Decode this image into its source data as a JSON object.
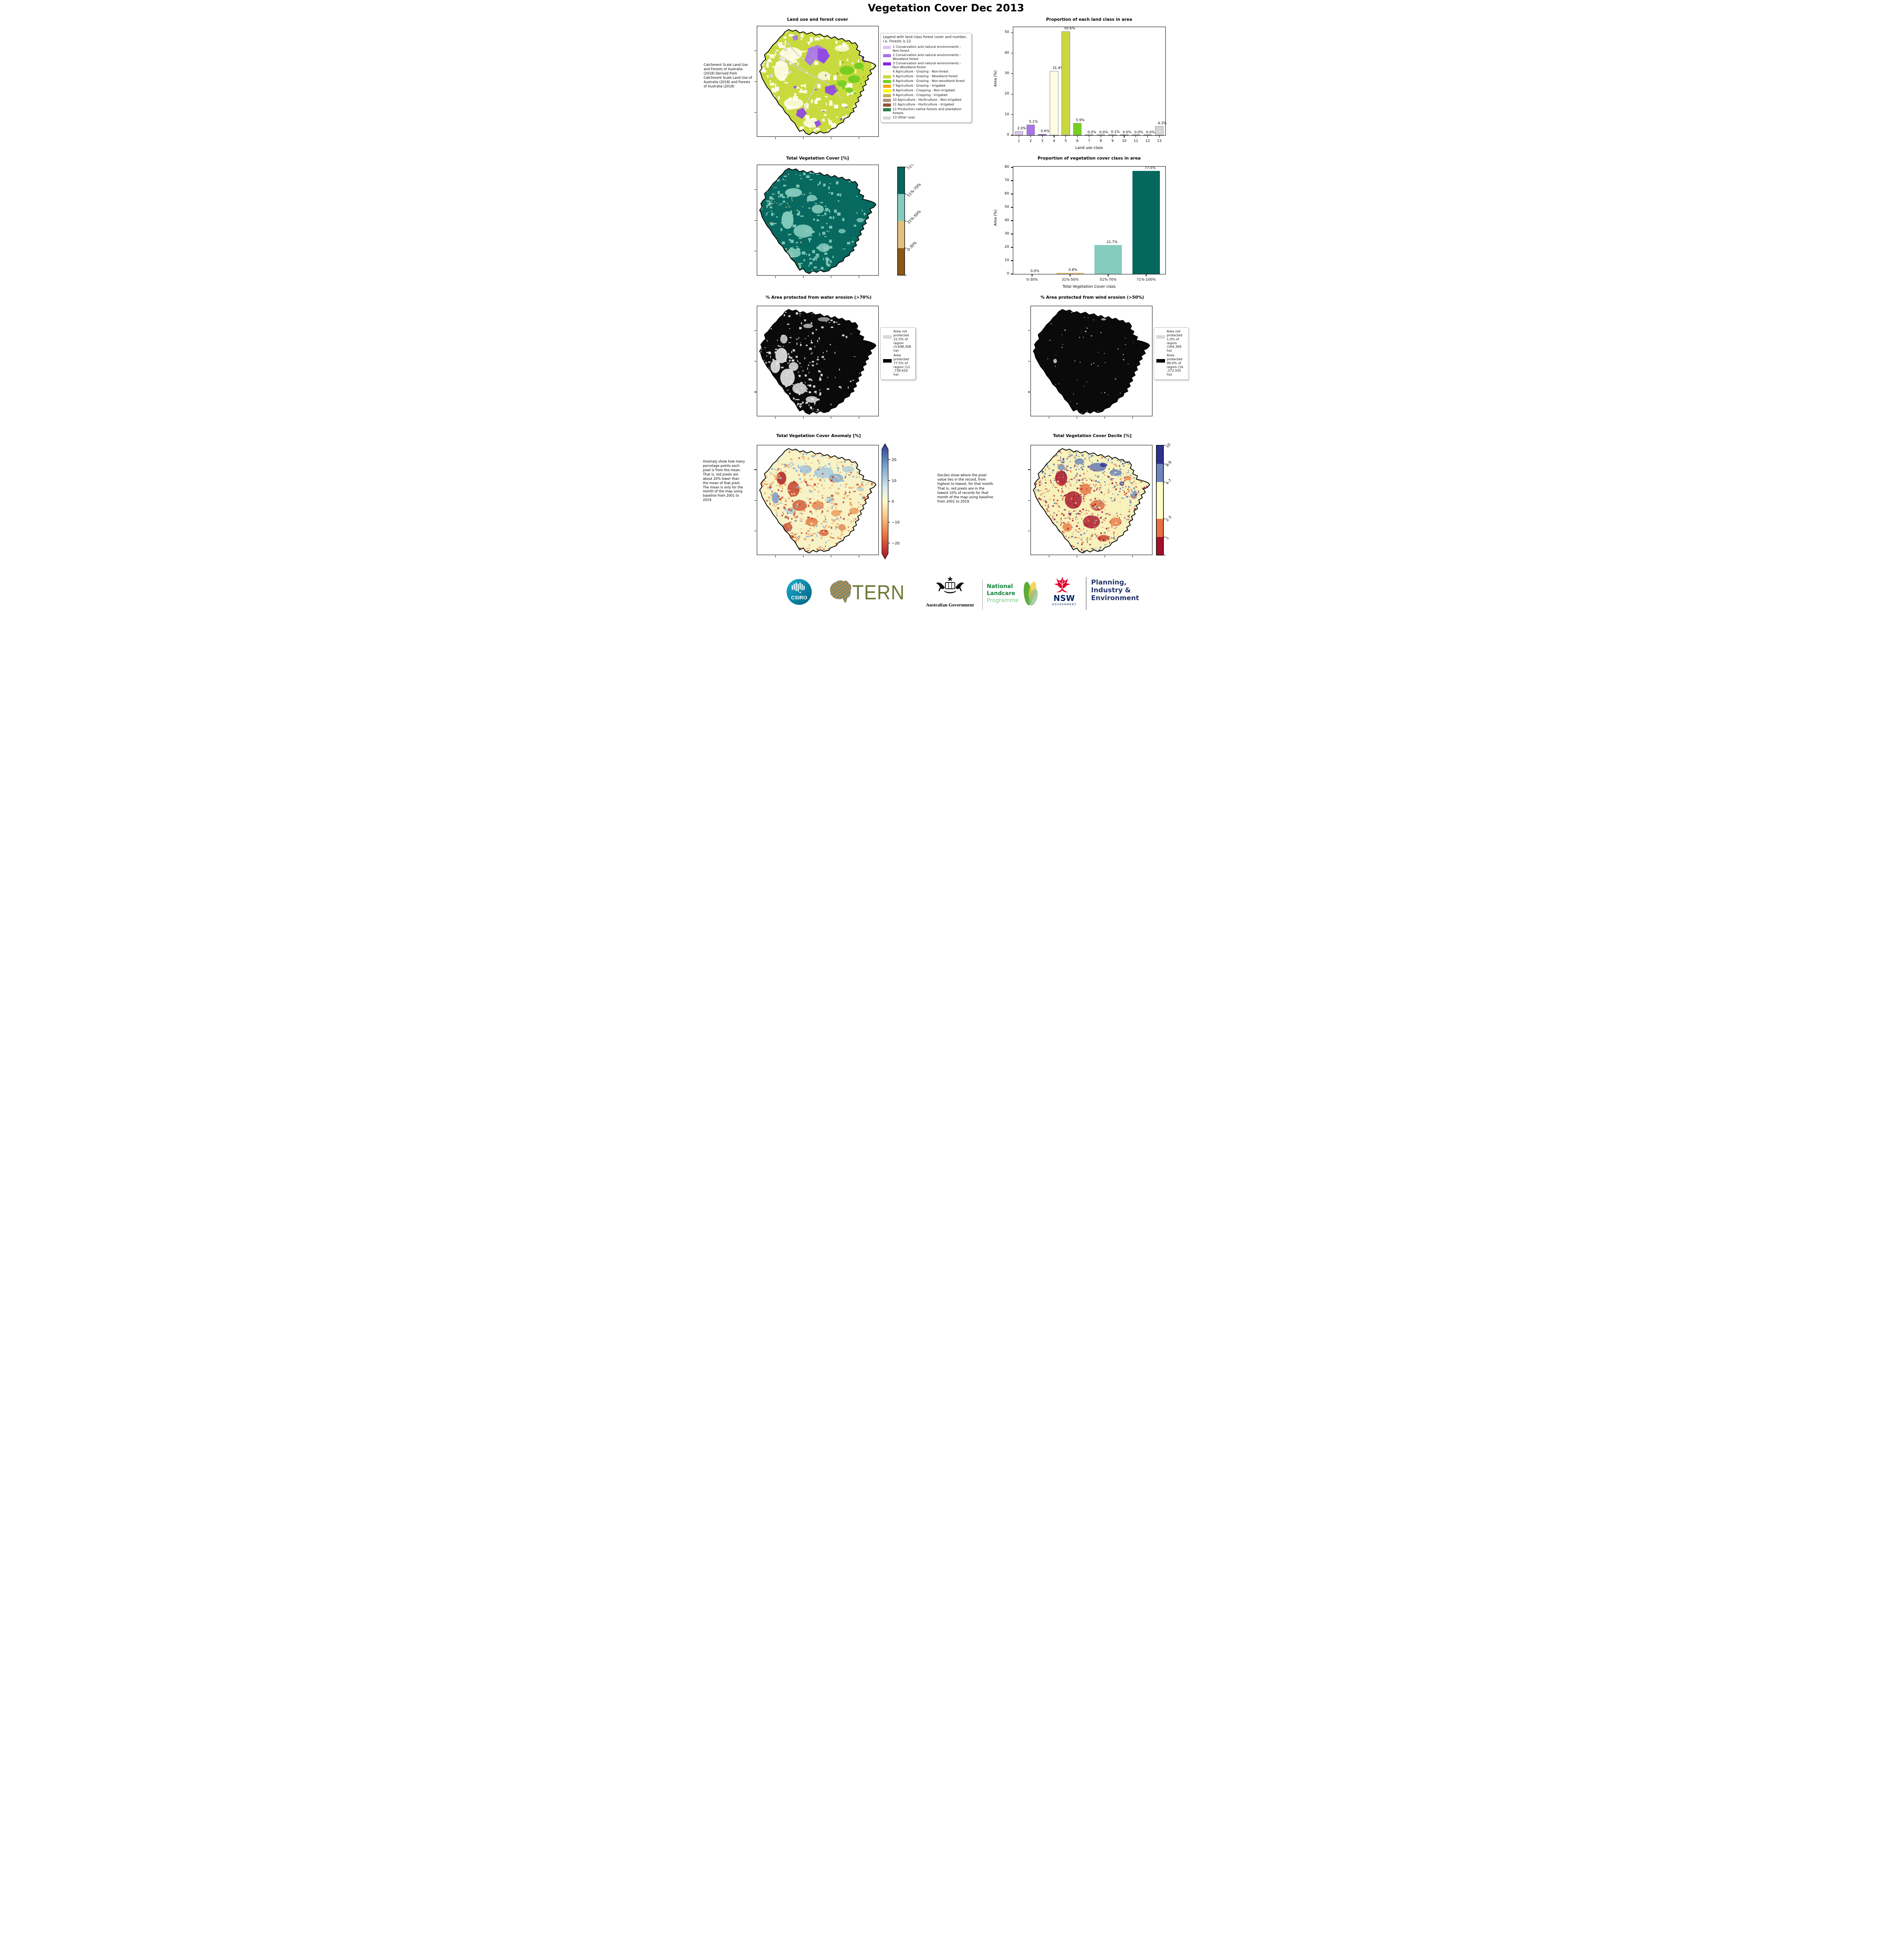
{
  "page_title": "Vegetation Cover Dec 2013",
  "land_use": {
    "title": "Land use and forest cover",
    "caption": " Catchment Scale Land Use and Forests of Australia (2018) Derived from Catchment Scale Land Use of Australia (2018) and Forests of Australia (2018)",
    "legend_title": "Legend with land class forest cover and number, i.e. Forests is 12",
    "classes": [
      {
        "label": "1 Conservation and natural environments - Non-forest",
        "color": "#ddc4f4"
      },
      {
        "label": "2 Conservation and natural environments - Woodland forest",
        "color": "#ab72ea"
      },
      {
        "label": "3 Conservation and natural environments - Non-Woodland forest",
        "color": "#8729e0"
      },
      {
        "label": "4 Agriculture - Grazing - Non-forest",
        "color": "#fffde5"
      },
      {
        "label": "5 Agriculture - Grazing - Woodland forest",
        "color": "#c9d840"
      },
      {
        "label": "6 Agriculture - Grazing - Non-woodland forest",
        "color": "#77d021"
      },
      {
        "label": "7 Agriculture - Grazing - Irrigated",
        "color": "#ffa510"
      },
      {
        "label": "8 Agriculture - Cropping - Non-irrigated",
        "color": "#fcfc00"
      },
      {
        "label": "9 Agriculture - Cropping - Irrigated",
        "color": "#c3b05c"
      },
      {
        "label": "10 Agriculture - Horticulture - Non-irrigated",
        "color": "#b08d7e"
      },
      {
        "label": "11 Agriculture - Horticulture - Irrigated",
        "color": "#95542f"
      },
      {
        "label": "12 Production native forests and plantation forests",
        "color": "#2c7e4c"
      },
      {
        "label": "13 Other uses",
        "color": "#d8d8d8"
      }
    ]
  },
  "veg_cover": {
    "title": "Total Vegetation Cover [%]",
    "colorbar": [
      {
        "label": "71%-100%",
        "color": "#06675e"
      },
      {
        "label": "51%-70%",
        "color": "#85ccbf"
      },
      {
        "label": "31%-50%",
        "color": "#e2c07e"
      },
      {
        "label": "0-30%",
        "color": "#8a5a15"
      }
    ]
  },
  "water_erosion": {
    "title": "% Area protected from water erosion (>70%)",
    "legend": [
      {
        "label": "Area not protected 22.5% of region (3,698,308 ha)",
        "color": "#d9d9d9"
      },
      {
        "label": "Area protected 77.5% of region (12 ,738,616 ha)",
        "color": "#000000"
      }
    ]
  },
  "wind_erosion": {
    "title": "% Area protected from wind erosion (>50%)",
    "legend": [
      {
        "label": "Area not protected 1.0% of region (164,369 ha)",
        "color": "#d9d9d9"
      },
      {
        "label": "Area protected 99.0% of region (16 ,272,555 ha)",
        "color": "#000000"
      }
    ]
  },
  "anomaly": {
    "title": "Total Vegetation Cover Anomaly [%]",
    "caption": "Anomaly show how many percetage points each pixel is from the mean. That is, red pixels are about 20% lower than the mean of that pixel. The mean is only for the month of the map using baseline from 2001 to 2019.",
    "colorbar_ticks": [
      {
        "label": "20",
        "pos": 10
      },
      {
        "label": "10",
        "pos": 30
      },
      {
        "label": "0",
        "pos": 50
      },
      {
        "label": "−10",
        "pos": 70
      },
      {
        "label": "−20",
        "pos": 90
      }
    ],
    "gradient": [
      "#30368f",
      "#6f9dc9",
      "#d9e9ef",
      "#fdfcc8",
      "#f9c380",
      "#e8713f",
      "#a50f26"
    ]
  },
  "decile": {
    "title": "Total Vegetation Cover Decile [%]",
    "caption": "Deciles show where the pixel value lies in the record, from highest to lowest, for that month. That is, red pixels are in the lowest 10% of records for that month of the map using baseline from 2001 to 2019.",
    "colorbar": [
      {
        "label": "10",
        "color": "#2e3192",
        "h": 17
      },
      {
        "label": "8-9",
        "color": "#7084bf",
        "h": 16.5
      },
      {
        "label": "4-7",
        "color": "#fffdc4",
        "h": 33.5
      },
      {
        "label": "2-3",
        "color": "#e8713f",
        "h": 16.5
      },
      {
        "label": "1",
        "color": "#a50f28",
        "h": 16.5
      }
    ]
  },
  "chart_data": [
    {
      "type": "bar",
      "title": "Proportion of each land class in area",
      "categories": [
        "1",
        "2",
        "3",
        "4",
        "5",
        "6",
        "7",
        "8",
        "9",
        "10",
        "11",
        "12",
        "13"
      ],
      "values": [
        2.0,
        5.1,
        0.6,
        31.4,
        50.6,
        5.9,
        0.0,
        0.0,
        0.1,
        0.0,
        0.0,
        0.0,
        4.3
      ],
      "value_labels": [
        "2.0%",
        "5.1%",
        "0.6%",
        "31.4%",
        "50.6%",
        "5.9%",
        "0.0%",
        "0.0%",
        "0.1%",
        "0.0%",
        "0.0%",
        "0.0%",
        "4.3%"
      ],
      "xlabel": "Land use class",
      "ylabel": "Area (%)",
      "ylim": [
        0,
        52.7
      ],
      "yticks": [
        0,
        10,
        20,
        30,
        40,
        50
      ],
      "bar_colors": [
        "#ddc4f4",
        "#ab72ea",
        "#8729e0",
        "#fffde5",
        "#c9d840",
        "#77d021",
        "#ffa510",
        "#fcfc00",
        "#c3b05c",
        "#b08d7e",
        "#95542f",
        "#2c7e4c",
        "#d8d8d8"
      ],
      "edge_color": "#8a8a8a",
      "legend_position": "none",
      "grid": false
    },
    {
      "type": "bar",
      "title": "Proportion of vegetation cover class in area",
      "categories": [
        "0-30%",
        "31%-50%",
        "51%-70%",
        "71%-100%"
      ],
      "values": [
        0.0,
        0.8,
        21.7,
        77.5
      ],
      "value_labels": [
        "0.0%",
        "0.8%",
        "21.7%",
        "77.5%"
      ],
      "xlabel": "Total Vegetation Cover class",
      "ylabel": "Area (%)",
      "ylim": [
        0,
        80.6
      ],
      "yticks": [
        0,
        10,
        20,
        30,
        40,
        50,
        60,
        70,
        80
      ],
      "bar_colors": [
        "#8a5a15",
        "#e2c07e",
        "#85ccbf",
        "#06675e"
      ],
      "edge_color": "none",
      "legend_position": "none",
      "grid": false
    }
  ],
  "map_colors": {
    "outline": "#000000",
    "land_use_base": "#c9da3f",
    "land_use_ivory": "#fffdea",
    "land_use_gray": "#d8d8d8",
    "land_use_purple": "#8e46e3",
    "land_use_purple_light": "#a874ea",
    "land_use_green": "#6ecc1e",
    "veg_base": "#07695f",
    "veg_light": "#86ccbe",
    "veg_tan": "#e6c389",
    "erosion_base": "#0a0a0a",
    "erosion_gray": "#e4e4e4",
    "anomaly_base": "#f7f3c6",
    "decile_base": "#f7f1bb"
  },
  "footer": {
    "csiro": "CSIRO",
    "tern": "TERN",
    "aus_gov": "Australian Government",
    "landcare_line1": "National",
    "landcare_line2": "Landcare",
    "landcare_line3": "Programme",
    "nsw": "NSW",
    "nsw_sub": "GOVERNMENT",
    "dept_line1": "Planning,",
    "dept_line2": "Industry &",
    "dept_line3": "Environment"
  }
}
